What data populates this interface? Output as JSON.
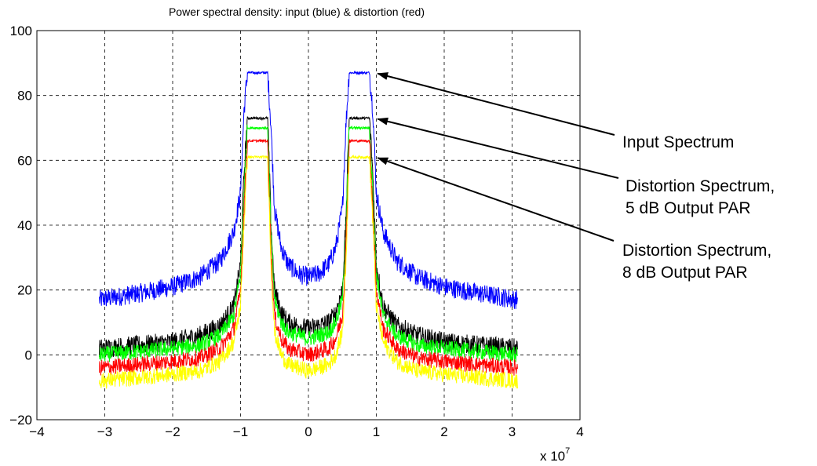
{
  "chart_data": {
    "type": "line",
    "title": "Power spectral density: input (blue) & distortion (red)",
    "xlabel": "",
    "ylabel": "",
    "x_multiplier_label": "x 10",
    "x_multiplier_exponent": "7",
    "xlim": [
      -4,
      4
    ],
    "ylim": [
      -20,
      100
    ],
    "x_ticks": [
      "−4",
      "−3",
      "−2",
      "−1",
      "0",
      "1",
      "2",
      "3",
      "4"
    ],
    "y_ticks": [
      "−20",
      "0",
      "20",
      "40",
      "60",
      "80",
      "100"
    ],
    "grid": true,
    "series": [
      {
        "color": "#0000ff",
        "floor_level": 17,
        "noise_amplitude": 3,
        "x": [
          -3.08,
          -2.5,
          -2.0,
          -1.6,
          -1.3,
          -1.1,
          -1.0,
          -0.95,
          -0.9,
          -0.6,
          -0.55,
          -0.5,
          -0.4,
          -0.3,
          -0.15,
          0,
          0.15,
          0.3,
          0.4,
          0.5,
          0.55,
          0.6,
          0.9,
          0.95,
          1.0,
          1.1,
          1.3,
          1.6,
          2.0,
          2.5,
          3.08
        ],
        "y": [
          17,
          19,
          21,
          24,
          29,
          38,
          50,
          75,
          87,
          87,
          70,
          45,
          33,
          28,
          25,
          24,
          25,
          28,
          33,
          45,
          70,
          87,
          87,
          75,
          50,
          38,
          29,
          24,
          21,
          19,
          17
        ]
      },
      {
        "color": "#000000",
        "floor_level": 2,
        "noise_amplitude": 3,
        "x": [
          -3.08,
          -2.5,
          -2.0,
          -1.6,
          -1.3,
          -1.1,
          -1.0,
          -0.95,
          -0.9,
          -0.6,
          -0.55,
          -0.5,
          -0.4,
          -0.3,
          -0.15,
          0,
          0.15,
          0.3,
          0.4,
          0.5,
          0.55,
          0.6,
          0.9,
          0.95,
          1.0,
          1.1,
          1.3,
          1.6,
          2.0,
          2.5,
          3.08
        ],
        "y": [
          2,
          3,
          4,
          6,
          9,
          15,
          28,
          55,
          73,
          73,
          40,
          20,
          13,
          10,
          9,
          8,
          9,
          10,
          13,
          20,
          40,
          73,
          73,
          55,
          28,
          15,
          9,
          6,
          4,
          3,
          2
        ]
      },
      {
        "color": "#00ff00",
        "floor_level": 0,
        "noise_amplitude": 2.5,
        "x": [
          -3.08,
          -2.5,
          -2.0,
          -1.6,
          -1.3,
          -1.1,
          -1.0,
          -0.95,
          -0.9,
          -0.6,
          -0.55,
          -0.5,
          -0.4,
          -0.3,
          -0.15,
          0,
          0.15,
          0.3,
          0.4,
          0.5,
          0.55,
          0.6,
          0.9,
          0.95,
          1.0,
          1.1,
          1.3,
          1.6,
          2.0,
          2.5,
          3.08
        ],
        "y": [
          0,
          1,
          2,
          3,
          6,
          12,
          25,
          50,
          70,
          70,
          37,
          17,
          10,
          7,
          6,
          5,
          6,
          7,
          10,
          17,
          37,
          70,
          70,
          50,
          25,
          12,
          6,
          3,
          2,
          1,
          0
        ]
      },
      {
        "color": "#ff0000",
        "floor_level": -4,
        "noise_amplitude": 2.5,
        "x": [
          -3.08,
          -2.5,
          -2.0,
          -1.6,
          -1.3,
          -1.1,
          -1.0,
          -0.95,
          -0.9,
          -0.6,
          -0.55,
          -0.5,
          -0.4,
          -0.3,
          -0.15,
          0,
          0.15,
          0.3,
          0.4,
          0.5,
          0.55,
          0.6,
          0.9,
          0.95,
          1.0,
          1.1,
          1.3,
          1.6,
          2.0,
          2.5,
          3.08
        ],
        "y": [
          -4,
          -3,
          -2,
          -1,
          2,
          8,
          20,
          45,
          66,
          66,
          32,
          12,
          5,
          2,
          1,
          0,
          1,
          2,
          5,
          12,
          32,
          66,
          66,
          45,
          20,
          8,
          2,
          -1,
          -2,
          -3,
          -4
        ]
      },
      {
        "color": "#ffff00",
        "floor_level": -8,
        "noise_amplitude": 2.5,
        "x": [
          -3.08,
          -2.5,
          -2.0,
          -1.6,
          -1.3,
          -1.1,
          -1.0,
          -0.95,
          -0.9,
          -0.6,
          -0.55,
          -0.5,
          -0.4,
          -0.3,
          -0.15,
          0,
          0.15,
          0.3,
          0.4,
          0.5,
          0.55,
          0.6,
          0.9,
          0.95,
          1.0,
          1.1,
          1.3,
          1.6,
          2.0,
          2.5,
          3.08
        ],
        "y": [
          -8,
          -7,
          -6,
          -5,
          -2,
          4,
          15,
          40,
          61,
          61,
          27,
          7,
          0,
          -3,
          -4,
          -5,
          -4,
          -3,
          0,
          7,
          27,
          61,
          61,
          40,
          15,
          4,
          -2,
          -5,
          -6,
          -7,
          -8
        ]
      }
    ],
    "annotations": [
      {
        "lines": [
          "Input Spectrum"
        ],
        "target": [
          0.95,
          87
        ]
      },
      {
        "lines": [
          "Distortion Spectrum,",
          "5 dB Output PAR"
        ],
        "target": [
          0.95,
          73
        ]
      },
      {
        "lines": [
          "Distortion Spectrum,",
          "8 dB Output PAR"
        ],
        "target": [
          0.95,
          61
        ]
      }
    ]
  }
}
